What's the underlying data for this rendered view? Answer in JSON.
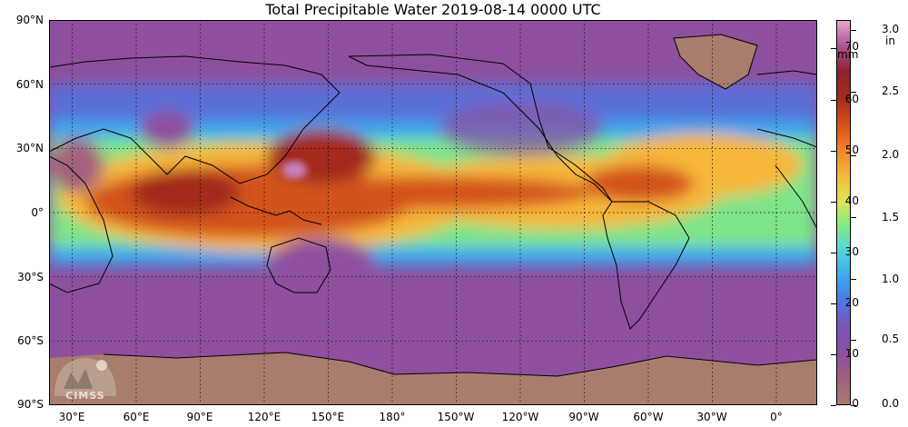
{
  "title": "Total Precipitable Water  2019-08-14 0000 UTC",
  "map": {
    "projection": "equirectangular",
    "center_longitude": 180,
    "lat_labels": [
      "90°N",
      "60°N",
      "30°N",
      "0°",
      "30°S",
      "60°S",
      "90°S"
    ],
    "lon_labels": [
      "30°E",
      "60°E",
      "90°E",
      "120°E",
      "150°E",
      "180°",
      "150°W",
      "120°W",
      "90°W",
      "60°W",
      "30°W",
      "0°"
    ],
    "colors": {
      "dry": "#a87d6e",
      "low": "#8e4f9e",
      "mid_low": "#3ba6ef",
      "mid": "#86ec7e",
      "mid_high": "#f7b73b",
      "high": "#d3521b",
      "very_high": "#a32b1a",
      "coastline": "#000000"
    }
  },
  "colorbar": {
    "mm_unit": "mm",
    "in_unit": "in",
    "mm_ticks": [
      "0",
      "10",
      "20",
      "30",
      "40",
      "50",
      "60",
      "70"
    ],
    "in_ticks": [
      "0.0",
      "0.5",
      "1.0",
      "1.5",
      "2.0",
      "2.5",
      "3.0"
    ]
  },
  "logo": {
    "text": "CIMSS",
    "icon": "cimss-logo-icon"
  }
}
